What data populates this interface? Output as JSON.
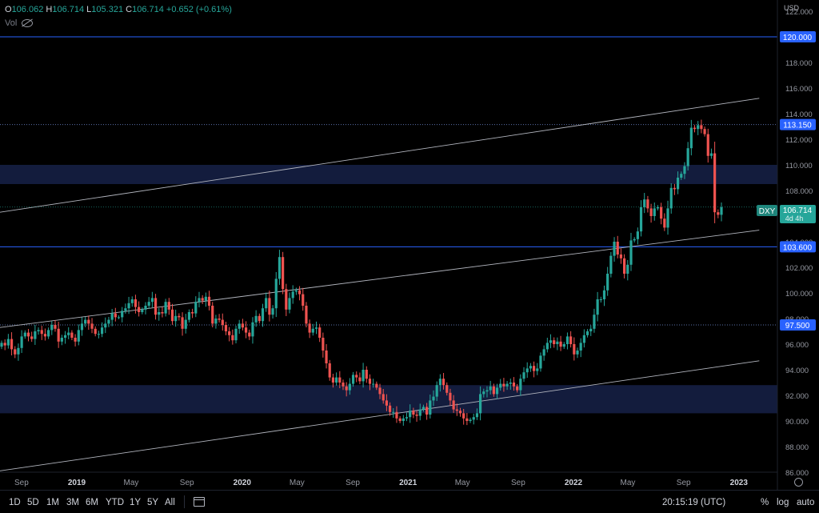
{
  "header": {
    "o_label": "O",
    "o": "106.062",
    "h_label": "H",
    "h": "106.714",
    "l_label": "L",
    "l": "105.321",
    "c_label": "C",
    "c": "106.714",
    "change": "+0.652 (+0.61%)",
    "vol_label": "Vol"
  },
  "currency": "USD",
  "symbol_badge": "DXY",
  "price_tag": {
    "value": "106.714",
    "countdown": "4d 4h"
  },
  "levels": [
    {
      "label": "120.000",
      "value": 120.0
    },
    {
      "label": "113.150",
      "value": 113.15
    },
    {
      "label": "103.600",
      "value": 103.6
    },
    {
      "label": "97.500",
      "value": 97.5
    }
  ],
  "toolbar": {
    "timeframes": [
      "1D",
      "5D",
      "1M",
      "3M",
      "6M",
      "YTD",
      "1Y",
      "5Y",
      "All"
    ],
    "clock": "20:15:19 (UTC)",
    "percent": "%",
    "log": "log",
    "auto": "auto"
  },
  "colors": {
    "up": "#26a69a",
    "down": "#ef5350",
    "level": "#2962ff",
    "zone": "#131c3d",
    "background": "#000000"
  },
  "icons": [
    "eye-off-icon",
    "calendar-range-icon",
    "gear-icon"
  ],
  "chart_data": {
    "type": "candlestick",
    "title": "",
    "y_axis": {
      "min": 86,
      "max": 122,
      "ticks": [
        "86.000",
        "88.000",
        "90.000",
        "92.000",
        "94.000",
        "96.000",
        "98.000",
        "100.000",
        "102.000",
        "104.000",
        "106.000",
        "108.000",
        "110.000",
        "112.000",
        "114.000",
        "116.000",
        "118.000",
        "120.000",
        "122.000"
      ]
    },
    "x_axis": {
      "labels": [
        "Sep",
        "2019",
        "May",
        "Sep",
        "2020",
        "May",
        "Sep",
        "2021",
        "May",
        "Sep",
        "2022",
        "May",
        "Sep",
        "2023"
      ],
      "dates": [
        "2018-09-01",
        "2019-01-01",
        "2019-05-01",
        "2019-09-01",
        "2020-01-01",
        "2020-05-01",
        "2020-09-01",
        "2021-01-01",
        "2021-05-01",
        "2021-09-01",
        "2022-01-01",
        "2022-05-01",
        "2022-09-01",
        "2023-01-01"
      ]
    },
    "zones": [
      {
        "from": 108.5,
        "to": 110.0
      },
      {
        "from": 90.6,
        "to": 92.8
      }
    ],
    "trendlines": [
      {
        "from": {
          "date": "2018-07-15",
          "value": 106.3
        },
        "to": {
          "date": "2023-02-15",
          "value": 115.2
        }
      },
      {
        "from": {
          "date": "2018-07-15",
          "value": 97.3
        },
        "to": {
          "date": "2023-02-15",
          "value": 104.9
        }
      },
      {
        "from": {
          "date": "2018-07-15",
          "value": 86.1
        },
        "to": {
          "date": "2023-02-15",
          "value": 94.7
        }
      }
    ],
    "weekly_closes": [
      96.1,
      95.9,
      96.4,
      95.6,
      95.2,
      95.7,
      96.6,
      96.9,
      96.6,
      96.4,
      97.0,
      97.1,
      96.8,
      96.6,
      97.1,
      97.5,
      97.2,
      96.2,
      96.5,
      96.7,
      96.9,
      96.5,
      96.2,
      97.1,
      97.6,
      97.9,
      97.6,
      97.2,
      96.8,
      96.8,
      97.3,
      97.6,
      97.9,
      98.4,
      98.1,
      98.1,
      98.6,
      98.8,
      99.2,
      99.5,
      98.9,
      98.5,
      98.7,
      99.0,
      99.3,
      99.6,
      98.3,
      98.5,
      98.4,
      99.3,
      98.7,
      97.8,
      98.2,
      98.1,
      97.2,
      97.9,
      98.5,
      98.4,
      99.3,
      99.6,
      99.4,
      99.7,
      99.0,
      97.6,
      98.0,
      97.9,
      97.5,
      97.0,
      96.7,
      96.3,
      97.2,
      97.6,
      97.3,
      96.9,
      96.6,
      97.7,
      98.2,
      97.8,
      98.8,
      99.6,
      98.3,
      98.8,
      101.1,
      102.8,
      100.3,
      98.7,
      99.6,
      100.1,
      100.2,
      99.9,
      99.0,
      97.6,
      96.9,
      97.2,
      97.3,
      96.5,
      95.5,
      94.5,
      93.4,
      93.0,
      93.4,
      93.0,
      92.7,
      92.4,
      92.9,
      93.6,
      93.4,
      93.1,
      94.0,
      93.3,
      92.9,
      92.9,
      92.6,
      92.1,
      91.6,
      91.2,
      90.7,
      90.7,
      90.2,
      90.0,
      90.2,
      90.3,
      90.8,
      90.5,
      90.4,
      90.9,
      91.1,
      90.5,
      91.6,
      91.9,
      92.8,
      93.3,
      92.8,
      92.2,
      91.6,
      90.9,
      90.8,
      90.6,
      90.2,
      90.0,
      90.1,
      90.3,
      90.6,
      92.1,
      92.3,
      92.4,
      92.7,
      92.1,
      92.6,
      92.9,
      92.7,
      92.9,
      93.0,
      92.7,
      92.4,
      93.3,
      93.8,
      94.1,
      94.3,
      93.9,
      94.1,
      95.1,
      95.6,
      96.1,
      96.3,
      96.0,
      96.2,
      95.8,
      96.0,
      96.6,
      96.0,
      95.2,
      95.5,
      96.1,
      96.7,
      97.0,
      97.2,
      98.3,
      99.5,
      99.5,
      100.2,
      101.5,
      102.9,
      104.0,
      103.0,
      102.7,
      101.5,
      102.2,
      104.1,
      104.2,
      104.8,
      106.7,
      107.3,
      106.6,
      106.0,
      106.6,
      106.7,
      105.8,
      105.1,
      106.6,
      108.2,
      108.1,
      109.0,
      109.3,
      109.9,
      111.3,
      112.9,
      112.8,
      113.1,
      112.8,
      112.4,
      110.7,
      110.9,
      106.3,
      106.1,
      106.7
    ]
  }
}
